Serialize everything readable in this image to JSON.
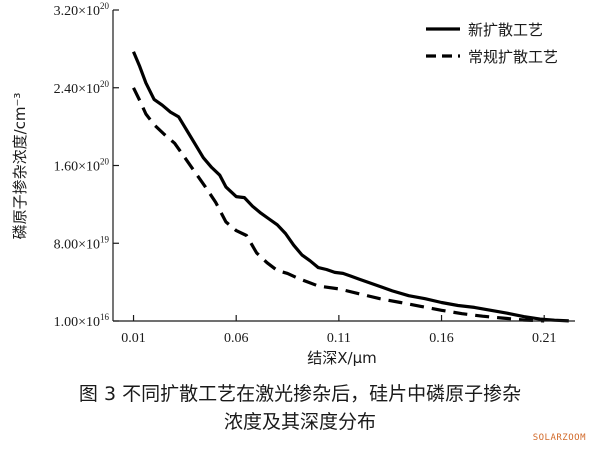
{
  "chart_data": {
    "type": "line",
    "xlabel": "结深X/μm",
    "ylabel": "磷原子掺杂浓度/cm⁻³",
    "xlim": [
      0.0,
      0.225
    ],
    "ylim": [
      1e+16,
      3.2e+20
    ],
    "x_ticks": [
      "0.01",
      "0.06",
      "0.11",
      "0.16",
      "0.21"
    ],
    "y_ticks": [
      {
        "base": "1.00×10",
        "exp": "16"
      },
      {
        "base": "8.00×10",
        "exp": "19"
      },
      {
        "base": "1.60×10",
        "exp": "20"
      },
      {
        "base": "2.40×10",
        "exp": "20"
      },
      {
        "base": "3.20×10",
        "exp": "20"
      }
    ],
    "legend_position": "top-right",
    "series": [
      {
        "name": "新扩散工艺",
        "style": "solid",
        "x": [
          0.01,
          0.013,
          0.016,
          0.02,
          0.024,
          0.028,
          0.032,
          0.036,
          0.04,
          0.044,
          0.048,
          0.052,
          0.055,
          0.06,
          0.064,
          0.068,
          0.072,
          0.076,
          0.08,
          0.084,
          0.088,
          0.092,
          0.096,
          0.1,
          0.104,
          0.108,
          0.112,
          0.116,
          0.12,
          0.128,
          0.136,
          0.144,
          0.152,
          0.16,
          0.168,
          0.176,
          0.184,
          0.192,
          0.2,
          0.208,
          0.215,
          0.222
        ],
        "y": [
          2.77e+20,
          2.62e+20,
          2.45e+20,
          2.28e+20,
          2.22e+20,
          2.15e+20,
          2.1e+20,
          1.96e+20,
          1.82e+20,
          1.68e+20,
          1.58e+20,
          1.5e+20,
          1.38e+20,
          1.28e+20,
          1.27e+20,
          1.18e+20,
          1.11e+20,
          1.05e+20,
          9.9e+19,
          9e+19,
          7.8e+19,
          6.8e+19,
          6.2e+19,
          5.5e+19,
          5.3e+19,
          5e+19,
          4.9e+19,
          4.6e+19,
          4.3e+19,
          3.7e+19,
          3.1e+19,
          2.6e+19,
          2.3e+19,
          1.9e+19,
          1.6e+19,
          1.4e+19,
          1.1e+19,
          8e+18,
          4.5e+18,
          2e+18,
          8e+17,
          1e+17
        ]
      },
      {
        "name": "常规扩散工艺",
        "style": "dashed",
        "x": [
          0.01,
          0.013,
          0.016,
          0.02,
          0.025,
          0.03,
          0.035,
          0.04,
          0.045,
          0.05,
          0.055,
          0.06,
          0.065,
          0.07,
          0.075,
          0.08,
          0.085,
          0.09,
          0.095,
          0.1,
          0.11,
          0.12,
          0.13,
          0.14,
          0.15,
          0.16,
          0.17,
          0.18,
          0.19,
          0.2,
          0.21
        ],
        "y": [
          2.4e+20,
          2.27e+20,
          2.13e+20,
          2.02e+20,
          1.92e+20,
          1.83e+20,
          1.68e+20,
          1.53e+20,
          1.38e+20,
          1.22e+20,
          1.02e+20,
          9.3e+19,
          8.8e+19,
          7e+19,
          6e+19,
          5.2e+19,
          4.9e+19,
          4.4e+19,
          4e+19,
          3.6e+19,
          3.3e+19,
          2.8e+19,
          2.3e+19,
          1.9e+19,
          1.5e+19,
          1.1e+19,
          7.5e+18,
          5e+18,
          3e+18,
          1e+18,
          1e+17
        ]
      }
    ]
  },
  "caption": {
    "line1": "图 3  不同扩散工艺在激光掺杂后，硅片中磷原子掺杂",
    "line2": "浓度及其深度分布"
  },
  "watermark": "SOLARZOOM"
}
